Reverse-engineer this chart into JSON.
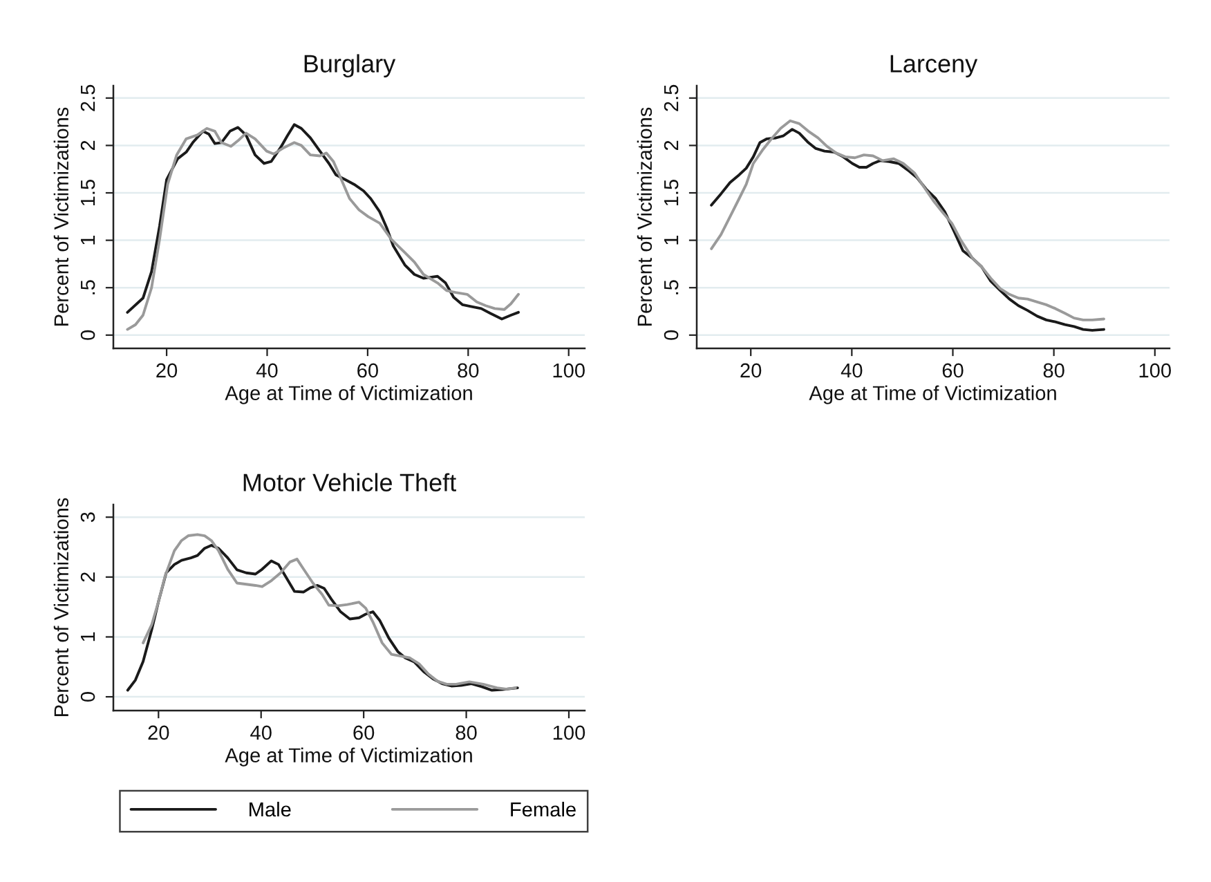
{
  "chart_data": [
    {
      "type": "line",
      "title": "Burglary",
      "xlabel": "Age at Time of Victimization",
      "ylabel": "Percent of Victimizations",
      "xlim": [
        9.4,
        103.2
      ],
      "xticks": [
        20,
        40,
        60,
        80,
        100
      ],
      "ylim": [
        -0.14,
        2.63
      ],
      "yticks": [
        0,
        {
          "value": 0.5,
          "label": ".5"
        },
        1,
        1.5,
        2,
        2.5
      ],
      "grid": "y",
      "series": [
        {
          "color": "#1a1a1a",
          "x": [
            12.2,
            15.3,
            17,
            18.6,
            20,
            22.2,
            23.9,
            25.2,
            27.2,
            28.4,
            29.6,
            30.9,
            32.6,
            34.2,
            35.8,
            37.6,
            39.4,
            40.8,
            42.7,
            44,
            45.4,
            46.8,
            48.6,
            50.5,
            52.3,
            53.7,
            55.5,
            57.3,
            59.2,
            60.6,
            62.4,
            63.8,
            65.1,
            67.4,
            69.3,
            71.1,
            72.5,
            73.9,
            75.5,
            77.1,
            78.9,
            80.7,
            82.6,
            84.4,
            86.7,
            88.5,
            90
          ],
          "values": [
            0.24,
            0.39,
            0.67,
            1.15,
            1.64,
            1.86,
            1.93,
            2.03,
            2.15,
            2.12,
            2.02,
            2.03,
            2.15,
            2.19,
            2.11,
            1.9,
            1.81,
            1.83,
            1.98,
            2.1,
            2.22,
            2.18,
            2.08,
            1.94,
            1.81,
            1.69,
            1.64,
            1.59,
            1.52,
            1.44,
            1.3,
            1.13,
            0.94,
            0.74,
            0.64,
            0.6,
            0.61,
            0.62,
            0.55,
            0.4,
            0.32,
            0.3,
            0.28,
            0.23,
            0.17,
            0.21,
            0.24
          ]
        },
        {
          "color": "#9a9a9a",
          "x": [
            12.2,
            13.8,
            15.3,
            17,
            18.6,
            20.2,
            22,
            23.9,
            26.1,
            28,
            29.6,
            30.9,
            32.8,
            34.2,
            35.8,
            37.6,
            39.9,
            41.3,
            43.1,
            45.4,
            46.8,
            48.6,
            50.5,
            51.8,
            53.2,
            54.6,
            56.4,
            58.3,
            60.1,
            62.4,
            64.7,
            67.4,
            69.3,
            71.1,
            73.9,
            75.7,
            77.5,
            79.8,
            81.7,
            83.5,
            85.3,
            87.2,
            88.5,
            90
          ],
          "values": [
            0.06,
            0.11,
            0.21,
            0.5,
            1.01,
            1.59,
            1.9,
            2.07,
            2.11,
            2.18,
            2.15,
            2.03,
            1.99,
            2.05,
            2.13,
            2.07,
            1.94,
            1.91,
            1.97,
            2.03,
            2.0,
            1.9,
            1.89,
            1.92,
            1.83,
            1.66,
            1.44,
            1.32,
            1.25,
            1.18,
            1.01,
            0.87,
            0.77,
            0.64,
            0.55,
            0.47,
            0.45,
            0.43,
            0.35,
            0.31,
            0.28,
            0.27,
            0.33,
            0.43
          ]
        }
      ]
    },
    {
      "type": "line",
      "title": "Larceny",
      "xlabel": "Age at Time of Victimization",
      "ylabel": "Percent of Victimizations",
      "xlim": [
        9.3,
        102.9
      ],
      "xticks": [
        20,
        40,
        60,
        80,
        100
      ],
      "ylim": [
        -0.14,
        2.63
      ],
      "yticks": [
        0,
        {
          "value": 0.5,
          "label": ".5"
        },
        1,
        1.5,
        2,
        2.5
      ],
      "grid": "y",
      "series": [
        {
          "color": "#1a1a1a",
          "x": [
            12.2,
            14.1,
            15.9,
            17.7,
            19.1,
            20.5,
            21.8,
            23.2,
            25,
            26.4,
            28.2,
            29.6,
            31.4,
            32.8,
            34.6,
            36.5,
            38.3,
            40.1,
            41.5,
            42.9,
            44.2,
            45.6,
            47.4,
            49.3,
            51.1,
            52.9,
            54.7,
            56.6,
            58.4,
            60.2,
            62,
            63.9,
            65.7,
            67.5,
            69.4,
            71.2,
            73,
            74.8,
            76.7,
            78.5,
            80.3,
            82.2,
            84,
            85.8,
            87.6,
            89.9
          ],
          "values": [
            1.37,
            1.49,
            1.61,
            1.69,
            1.76,
            1.88,
            2.03,
            2.07,
            2.08,
            2.1,
            2.17,
            2.13,
            2.03,
            1.97,
            1.94,
            1.93,
            1.88,
            1.81,
            1.77,
            1.77,
            1.81,
            1.84,
            1.83,
            1.81,
            1.74,
            1.66,
            1.54,
            1.44,
            1.3,
            1.1,
            0.89,
            0.81,
            0.72,
            0.57,
            0.47,
            0.38,
            0.31,
            0.26,
            0.2,
            0.16,
            0.14,
            0.11,
            0.09,
            0.06,
            0.05,
            0.06
          ]
        },
        {
          "color": "#9a9a9a",
          "x": [
            12.2,
            14.1,
            15.9,
            17.7,
            19.1,
            20.5,
            22.3,
            24.1,
            25.9,
            27.8,
            29.6,
            31.4,
            33.3,
            35.1,
            36.9,
            38.7,
            40.6,
            42.4,
            44.2,
            46.1,
            48.3,
            50.2,
            52.4,
            54.3,
            56.1,
            57.9,
            59.8,
            61.6,
            63.9,
            65.7,
            67.5,
            69.4,
            71.2,
            73,
            74.8,
            76.7,
            78.5,
            80.3,
            82.2,
            84,
            85.8,
            87.6,
            89.9
          ],
          "values": [
            0.91,
            1.06,
            1.25,
            1.44,
            1.59,
            1.81,
            1.95,
            2.07,
            2.18,
            2.26,
            2.23,
            2.15,
            2.08,
            1.99,
            1.92,
            1.88,
            1.87,
            1.9,
            1.89,
            1.84,
            1.86,
            1.81,
            1.71,
            1.56,
            1.42,
            1.3,
            1.18,
            1.0,
            0.81,
            0.72,
            0.6,
            0.49,
            0.43,
            0.39,
            0.38,
            0.35,
            0.32,
            0.28,
            0.23,
            0.18,
            0.16,
            0.16,
            0.17
          ]
        }
      ]
    },
    {
      "type": "line",
      "title": "Motor Vehicle Theft",
      "xlabel": "Age at Time of Victimization",
      "ylabel": "Percent of Victimizations",
      "xlim": [
        11.2,
        103.1
      ],
      "xticks": [
        20,
        40,
        60,
        80,
        100
      ],
      "ylim": [
        -0.23,
        3.21
      ],
      "yticks": [
        0,
        1,
        2,
        3
      ],
      "grid": "y",
      "legend": "bottom",
      "series": [
        {
          "name": "Male",
          "color": "#1a1a1a",
          "x": [
            14,
            15.5,
            17,
            18.7,
            20,
            21.5,
            23.1,
            24.5,
            26.3,
            27.6,
            29,
            30.3,
            31.7,
            33.5,
            35.3,
            37.1,
            38.9,
            40.2,
            42,
            43.4,
            44.7,
            46.5,
            48.3,
            49.6,
            51,
            52.3,
            53.7,
            55.5,
            57.3,
            59.1,
            60.4,
            61.8,
            63.1,
            64.9,
            66.7,
            68.1,
            69.9,
            71.7,
            73.5,
            75.3,
            77.1,
            79,
            81,
            83,
            85,
            87,
            90
          ],
          "values": [
            0.11,
            0.28,
            0.59,
            1.13,
            1.59,
            2.07,
            2.21,
            2.28,
            2.32,
            2.36,
            2.48,
            2.53,
            2.48,
            2.32,
            2.12,
            2.07,
            2.05,
            2.13,
            2.27,
            2.21,
            2.02,
            1.76,
            1.75,
            1.82,
            1.86,
            1.81,
            1.63,
            1.42,
            1.3,
            1.32,
            1.38,
            1.42,
            1.28,
            0.98,
            0.75,
            0.65,
            0.58,
            0.42,
            0.3,
            0.22,
            0.18,
            0.19,
            0.22,
            0.17,
            0.11,
            0.12,
            0.15
          ]
        },
        {
          "name": "Female",
          "color": "#9a9a9a",
          "x": [
            17,
            18.7,
            20,
            21.3,
            23.1,
            24.5,
            25.8,
            27.6,
            29,
            30.3,
            31.7,
            33.5,
            35.3,
            37.1,
            38.9,
            40.2,
            42,
            43.8,
            45.6,
            47,
            48.3,
            50.1,
            51.9,
            53.2,
            55,
            56.8,
            59.1,
            60.4,
            61.8,
            63.6,
            65.4,
            67.2,
            69,
            70.8,
            72.6,
            74.4,
            76.2,
            78,
            80.6,
            83.3,
            86,
            87.8,
            89.6
          ],
          "values": [
            0.9,
            1.21,
            1.59,
            2.02,
            2.44,
            2.61,
            2.69,
            2.71,
            2.69,
            2.61,
            2.44,
            2.13,
            1.9,
            1.88,
            1.86,
            1.84,
            1.94,
            2.07,
            2.25,
            2.3,
            2.13,
            1.9,
            1.71,
            1.53,
            1.52,
            1.54,
            1.58,
            1.48,
            1.25,
            0.9,
            0.71,
            0.68,
            0.65,
            0.55,
            0.38,
            0.26,
            0.21,
            0.21,
            0.25,
            0.21,
            0.15,
            0.13,
            0.15
          ]
        }
      ]
    }
  ]
}
